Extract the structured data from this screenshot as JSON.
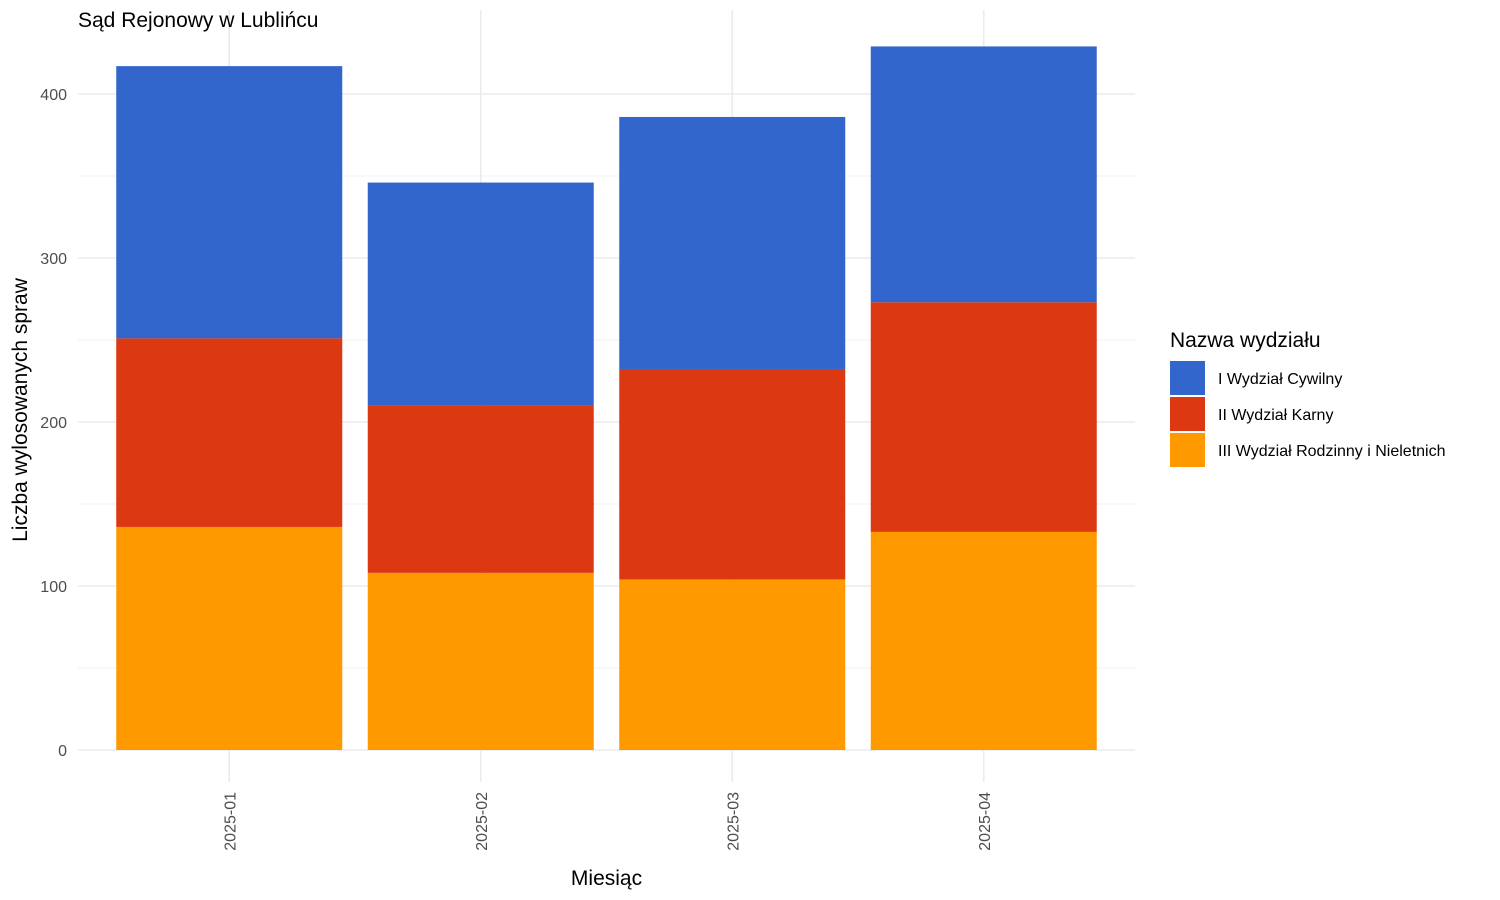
{
  "chart_data": {
    "type": "bar",
    "stacked": true,
    "title": "Sąd Rejonowy w Lublińcu",
    "xlabel": "Miesiąc",
    "ylabel": "Liczba wylosowanych spraw",
    "categories": [
      "2025-01",
      "2025-02",
      "2025-03",
      "2025-04"
    ],
    "ylim": [
      0,
      440
    ],
    "yticks": [
      0,
      100,
      200,
      300,
      400
    ],
    "grid": true,
    "legend": {
      "title": "Nazwa wydziału",
      "placement": "right"
    },
    "series": [
      {
        "name": "III Wydział Rodzinny i Nieletnich",
        "color": "#FF9900",
        "values": [
          136,
          108,
          104,
          133
        ]
      },
      {
        "name": "II Wydział Karny",
        "color": "#DC3912",
        "values": [
          115,
          102,
          128,
          140
        ]
      },
      {
        "name": "I Wydział Cywilny",
        "color": "#3366CC",
        "values": [
          166,
          136,
          154,
          156
        ]
      }
    ],
    "legend_order": [
      "I Wydział Cywilny",
      "II Wydział Karny",
      "III Wydział Rodzinny i Nieletnich"
    ]
  }
}
